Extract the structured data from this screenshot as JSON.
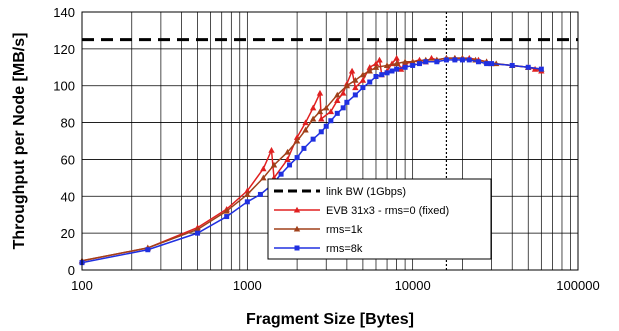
{
  "chart_data": {
    "type": "line",
    "xscale": "log",
    "xlim": [
      100,
      100000
    ],
    "ylim": [
      0,
      140
    ],
    "xlabel": "Fragment Size [Bytes]",
    "ylabel": "Throughput per Node [MB/s]",
    "xticks": [
      100,
      1000,
      10000,
      100000
    ],
    "xtick_labels": [
      "100",
      "1000",
      "10000",
      "100000"
    ],
    "yticks": [
      0,
      20,
      40,
      60,
      80,
      100,
      120,
      140
    ],
    "ytick_labels": [
      "0",
      "20",
      "40",
      "60",
      "80",
      "100",
      "120",
      "140"
    ],
    "grid": true,
    "legend_position": "lower-right",
    "reference_lines": [
      {
        "name": "link BW (1Gbps)",
        "orientation": "horizontal",
        "value": 125,
        "style": "dashed",
        "color": "#000000"
      },
      {
        "orientation": "vertical",
        "value": 16000,
        "style": "dotted",
        "color": "#000000"
      }
    ],
    "series": [
      {
        "name": "EVB 31x3 - rms=0 (fixed)",
        "color": "#e02020",
        "marker": "triangle",
        "points": [
          [
            100,
            5
          ],
          [
            250,
            12
          ],
          [
            500,
            23
          ],
          [
            750,
            33
          ],
          [
            1000,
            43
          ],
          [
            1250,
            55
          ],
          [
            1400,
            65
          ],
          [
            1450,
            50
          ],
          [
            1750,
            60
          ],
          [
            2000,
            72
          ],
          [
            2250,
            80
          ],
          [
            2500,
            88
          ],
          [
            2750,
            96
          ],
          [
            2800,
            82
          ],
          [
            3200,
            86
          ],
          [
            3500,
            92
          ],
          [
            3800,
            96
          ],
          [
            4000,
            101
          ],
          [
            4300,
            108
          ],
          [
            4500,
            99
          ],
          [
            5000,
            103
          ],
          [
            5500,
            110
          ],
          [
            6000,
            112
          ],
          [
            6300,
            114
          ],
          [
            6500,
            106
          ],
          [
            7000,
            108
          ],
          [
            7500,
            112
          ],
          [
            8000,
            115
          ],
          [
            8500,
            109
          ],
          [
            9000,
            112
          ],
          [
            10000,
            113
          ],
          [
            11000,
            114
          ],
          [
            12000,
            113
          ],
          [
            13000,
            115
          ],
          [
            14000,
            114
          ],
          [
            16000,
            115
          ],
          [
            18000,
            115
          ],
          [
            20000,
            115
          ],
          [
            22000,
            115
          ],
          [
            25000,
            114
          ],
          [
            28000,
            113
          ],
          [
            30000,
            112
          ],
          [
            40000,
            111
          ],
          [
            50000,
            110
          ],
          [
            55000,
            109
          ],
          [
            60000,
            108
          ]
        ]
      },
      {
        "name": "rms=1k",
        "color": "#a0401a",
        "marker": "triangle",
        "points": [
          [
            100,
            5
          ],
          [
            250,
            12
          ],
          [
            500,
            22
          ],
          [
            750,
            32
          ],
          [
            1000,
            41
          ],
          [
            1250,
            50
          ],
          [
            1450,
            57
          ],
          [
            1750,
            64
          ],
          [
            2000,
            70
          ],
          [
            2250,
            76
          ],
          [
            2500,
            82
          ],
          [
            2750,
            86
          ],
          [
            3000,
            88
          ],
          [
            3500,
            95
          ],
          [
            4000,
            100
          ],
          [
            4500,
            103
          ],
          [
            5000,
            106
          ],
          [
            5500,
            108
          ],
          [
            6000,
            110
          ],
          [
            7000,
            111
          ],
          [
            8000,
            112
          ],
          [
            9000,
            113
          ],
          [
            10000,
            113
          ],
          [
            12000,
            114
          ],
          [
            14000,
            114
          ],
          [
            16000,
            115
          ],
          [
            18000,
            115
          ],
          [
            20000,
            115
          ],
          [
            24000,
            114
          ],
          [
            28000,
            113
          ],
          [
            32000,
            112
          ],
          [
            40000,
            111
          ],
          [
            50000,
            110
          ],
          [
            60000,
            109
          ]
        ]
      },
      {
        "name": "rms=8k",
        "color": "#2030e0",
        "marker": "square",
        "points": [
          [
            100,
            4
          ],
          [
            250,
            11
          ],
          [
            500,
            20
          ],
          [
            750,
            29
          ],
          [
            1000,
            37
          ],
          [
            1200,
            41
          ],
          [
            1400,
            46
          ],
          [
            1600,
            52
          ],
          [
            1800,
            57
          ],
          [
            2000,
            61
          ],
          [
            2200,
            66
          ],
          [
            2500,
            71
          ],
          [
            2800,
            75
          ],
          [
            3000,
            78
          ],
          [
            3200,
            81
          ],
          [
            3500,
            85
          ],
          [
            3800,
            88
          ],
          [
            4000,
            91
          ],
          [
            4500,
            95
          ],
          [
            5000,
            99
          ],
          [
            5500,
            102
          ],
          [
            6000,
            105
          ],
          [
            6500,
            106
          ],
          [
            7000,
            107
          ],
          [
            7500,
            108
          ],
          [
            8000,
            109
          ],
          [
            9000,
            110
          ],
          [
            10000,
            111
          ],
          [
            11000,
            112
          ],
          [
            12000,
            113
          ],
          [
            14000,
            113
          ],
          [
            16000,
            114
          ],
          [
            18000,
            114
          ],
          [
            20000,
            114
          ],
          [
            22000,
            114
          ],
          [
            25000,
            113
          ],
          [
            28000,
            112
          ],
          [
            30000,
            112
          ],
          [
            40000,
            111
          ],
          [
            50000,
            110
          ],
          [
            60000,
            109
          ]
        ]
      }
    ]
  }
}
